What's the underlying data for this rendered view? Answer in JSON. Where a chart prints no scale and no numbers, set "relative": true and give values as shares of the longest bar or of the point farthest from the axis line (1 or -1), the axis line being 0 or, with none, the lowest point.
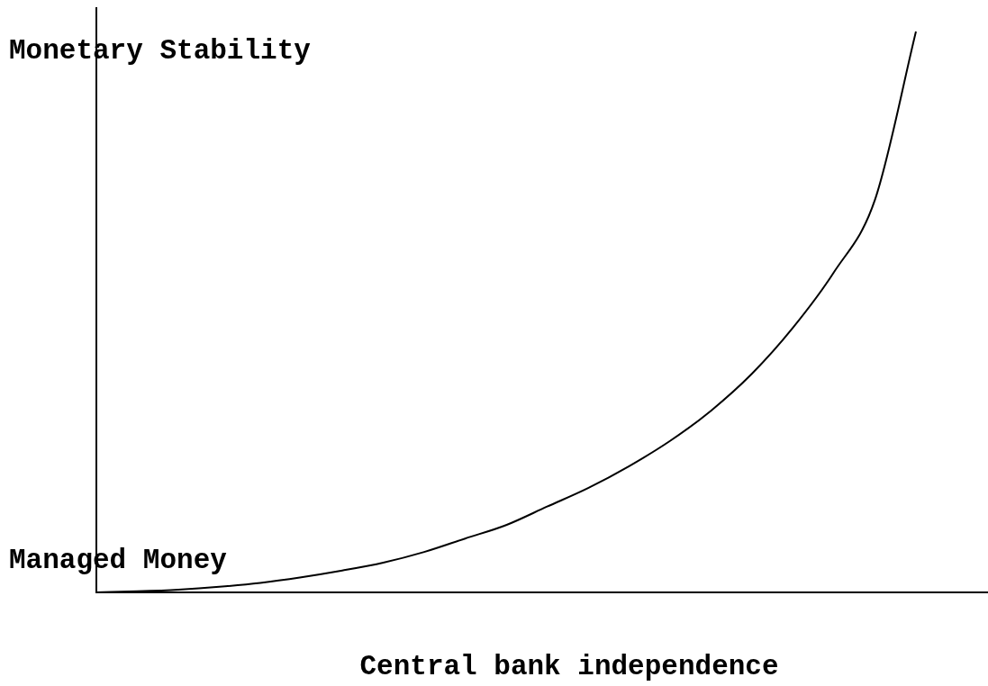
{
  "chart_data": {
    "type": "line",
    "relative": true,
    "xlabel": "Central bank independence",
    "annotations": [
      "Monetary Stability",
      "Managed Money"
    ],
    "categories": [
      null,
      null,
      null,
      null,
      null,
      null,
      null,
      null,
      null,
      null,
      null,
      null,
      null,
      null,
      null,
      null,
      null,
      null,
      null,
      null,
      null
    ],
    "series": [
      {
        "color": "#000000",
        "values": [
          0,
          0.002,
          0.005,
          0.01,
          0.017,
          0.027,
          0.039,
          0.053,
          0.072,
          0.096,
          0.12,
          0.153,
          0.186,
          0.225,
          0.27,
          0.324,
          0.39,
          0.472,
          0.571,
          0.7,
          1
        ]
      }
    ],
    "legend": false,
    "marker": "none",
    "line_style": "solid"
  }
}
